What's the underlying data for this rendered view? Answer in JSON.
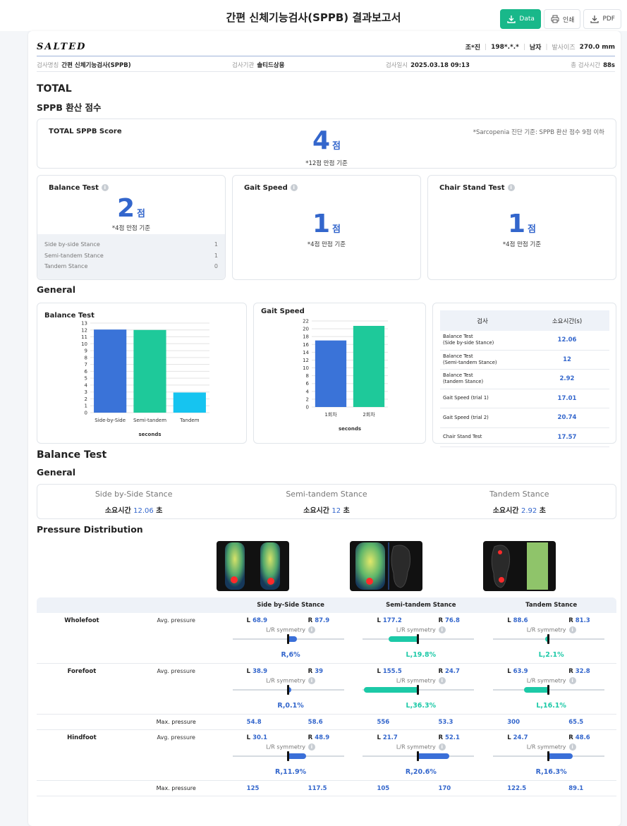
{
  "header": {
    "title": "간편 신체기능검사(SPPB) 결과보고서",
    "data_label": "Data",
    "print_label": "인쇄",
    "pdf_label": "PDF"
  },
  "brand": {
    "logo": "SALTED"
  },
  "patient": {
    "name": "조*진",
    "id": "198*.*.*",
    "gender": "남자",
    "shoe_label": "발사이즈",
    "shoe_size": "270.0 mm"
  },
  "exam_info": {
    "name_label": "검사명칭",
    "name": "간편 신체기능검사(SPPB)",
    "org_label": "검사기관",
    "org": "솔티드상용",
    "date_label": "검사일시",
    "date": "2025.03.18 09:13",
    "duration_label": "총 검사시간",
    "duration": "88s"
  },
  "total": {
    "heading": "TOTAL",
    "subheading": "SPPB 환산 점수",
    "card_title": "TOTAL SPPB Score",
    "sarcopenia": "*Sarcopenia 진단 기준: SPPB 환산 점수 9점 이하",
    "score": "4",
    "unit": "점",
    "note": "*12점 만점 기준"
  },
  "tests": [
    {
      "title": "Balance Test",
      "score": "2",
      "unit": "점",
      "note": "*4점 만점 기준"
    },
    {
      "title": "Gait Speed",
      "score": "1",
      "unit": "점",
      "note": "*4점 만점 기준"
    },
    {
      "title": "Chair Stand Test",
      "score": "1",
      "unit": "점",
      "note": "*4점 만점 기준"
    }
  ],
  "balance_sub": [
    {
      "label": "Side by-side Stance",
      "value": "1"
    },
    {
      "label": "Semi-tandem Stance",
      "value": "1"
    },
    {
      "label": "Tandem Stance",
      "value": "0"
    }
  ],
  "general": {
    "heading": "General"
  },
  "time_table": {
    "col1": "검사",
    "col2": "소요시간(s)",
    "rows": [
      {
        "label": "Balance Test\n(Side by-side Stance)",
        "value": "12.06"
      },
      {
        "label": "Balance Test\n(Semi-tandem Stance)",
        "value": "12"
      },
      {
        "label": "Balance Test\n(tandem Stance)",
        "value": "2.92"
      },
      {
        "label": "Gait Speed (trial 1)",
        "value": "17.01"
      },
      {
        "label": "Gait Speed (trial 2)",
        "value": "20.74"
      },
      {
        "label": "Chair Stand Test",
        "value": "17.57"
      }
    ]
  },
  "chart_data": [
    {
      "type": "bar",
      "title": "Balance Test",
      "categories": [
        "Side-by-Side",
        "Semi-tandem",
        "Tandem"
      ],
      "values": [
        12.06,
        12,
        2.92
      ],
      "colors": [
        "#3a73d8",
        "#1ec99a",
        "#16c4f0"
      ],
      "xlabel": "seconds",
      "ylim": [
        0,
        13
      ],
      "yticks": [
        "0",
        "1",
        "2",
        "3",
        "4",
        "5",
        "6",
        "7",
        "8",
        "9",
        "10",
        "11",
        "12",
        "13"
      ],
      "grid": true
    },
    {
      "type": "bar",
      "title": "Gait Speed",
      "categories": [
        "1회차",
        "2회차"
      ],
      "values": [
        17.01,
        20.74
      ],
      "colors": [
        "#3a73d8",
        "#1ec99a"
      ],
      "xlabel": "seconds",
      "ylim": [
        0,
        22
      ],
      "yticks": [
        "0",
        "2",
        "4",
        "6",
        "8",
        "10",
        "12",
        "14",
        "16",
        "18",
        "20",
        "22"
      ],
      "grid": true
    }
  ],
  "balance_section": {
    "heading": "Balance Test",
    "subheading": "General",
    "time_label": "소요시간",
    "sec_unit": "초",
    "stances": [
      {
        "name": "Side by-Side Stance",
        "time": "12.06"
      },
      {
        "name": "Semi-tandem Stance",
        "time": "12"
      },
      {
        "name": "Tandem Stance",
        "time": "2.92"
      }
    ]
  },
  "pressure": {
    "heading": "Pressure Distribution",
    "headers": [
      "Side by-Side Stance",
      "Semi-tandem Stance",
      "Tandem Stance"
    ],
    "avg_label": "Avg. pressure",
    "max_label": "Max. pressure",
    "sym_label": "L/R symmetry",
    "L": "L",
    "R": "R",
    "rows": [
      {
        "region": "Wholefoot",
        "cells": [
          {
            "l": "68.9",
            "r": "87.9",
            "sym": "R,6%",
            "side": "right",
            "pct": 6
          },
          {
            "l": "177.2",
            "r": "76.8",
            "sym": "L,19.8%",
            "side": "left",
            "pct": 19.8
          },
          {
            "l": "88.6",
            "r": "81.3",
            "sym": "L,2.1%",
            "side": "left",
            "pct": 2.1
          }
        ]
      },
      {
        "region": "Forefoot",
        "cells": [
          {
            "l": "38.9",
            "r": "39",
            "sym": "R,0.1%",
            "side": "right",
            "pct": 0.1
          },
          {
            "l": "155.5",
            "r": "24.7",
            "sym": "L,36.3%",
            "side": "left",
            "pct": 36.3
          },
          {
            "l": "63.9",
            "r": "32.8",
            "sym": "L,16.1%",
            "side": "left",
            "pct": 16.1
          }
        ],
        "max": [
          [
            "54.8",
            "58.6"
          ],
          [
            "556",
            "53.3"
          ],
          [
            "300",
            "65.5"
          ]
        ]
      },
      {
        "region": "Hindfoot",
        "cells": [
          {
            "l": "30.1",
            "r": "48.9",
            "sym": "R,11.9%",
            "side": "right",
            "pct": 11.9
          },
          {
            "l": "21.7",
            "r": "52.1",
            "sym": "R,20.6%",
            "side": "right",
            "pct": 20.6
          },
          {
            "l": "24.7",
            "r": "48.6",
            "sym": "R,16.3%",
            "side": "right",
            "pct": 16.3
          }
        ],
        "max": [
          [
            "125",
            "117.5"
          ],
          [
            "105",
            "170"
          ],
          [
            "122.5",
            "89.1"
          ]
        ]
      }
    ]
  }
}
